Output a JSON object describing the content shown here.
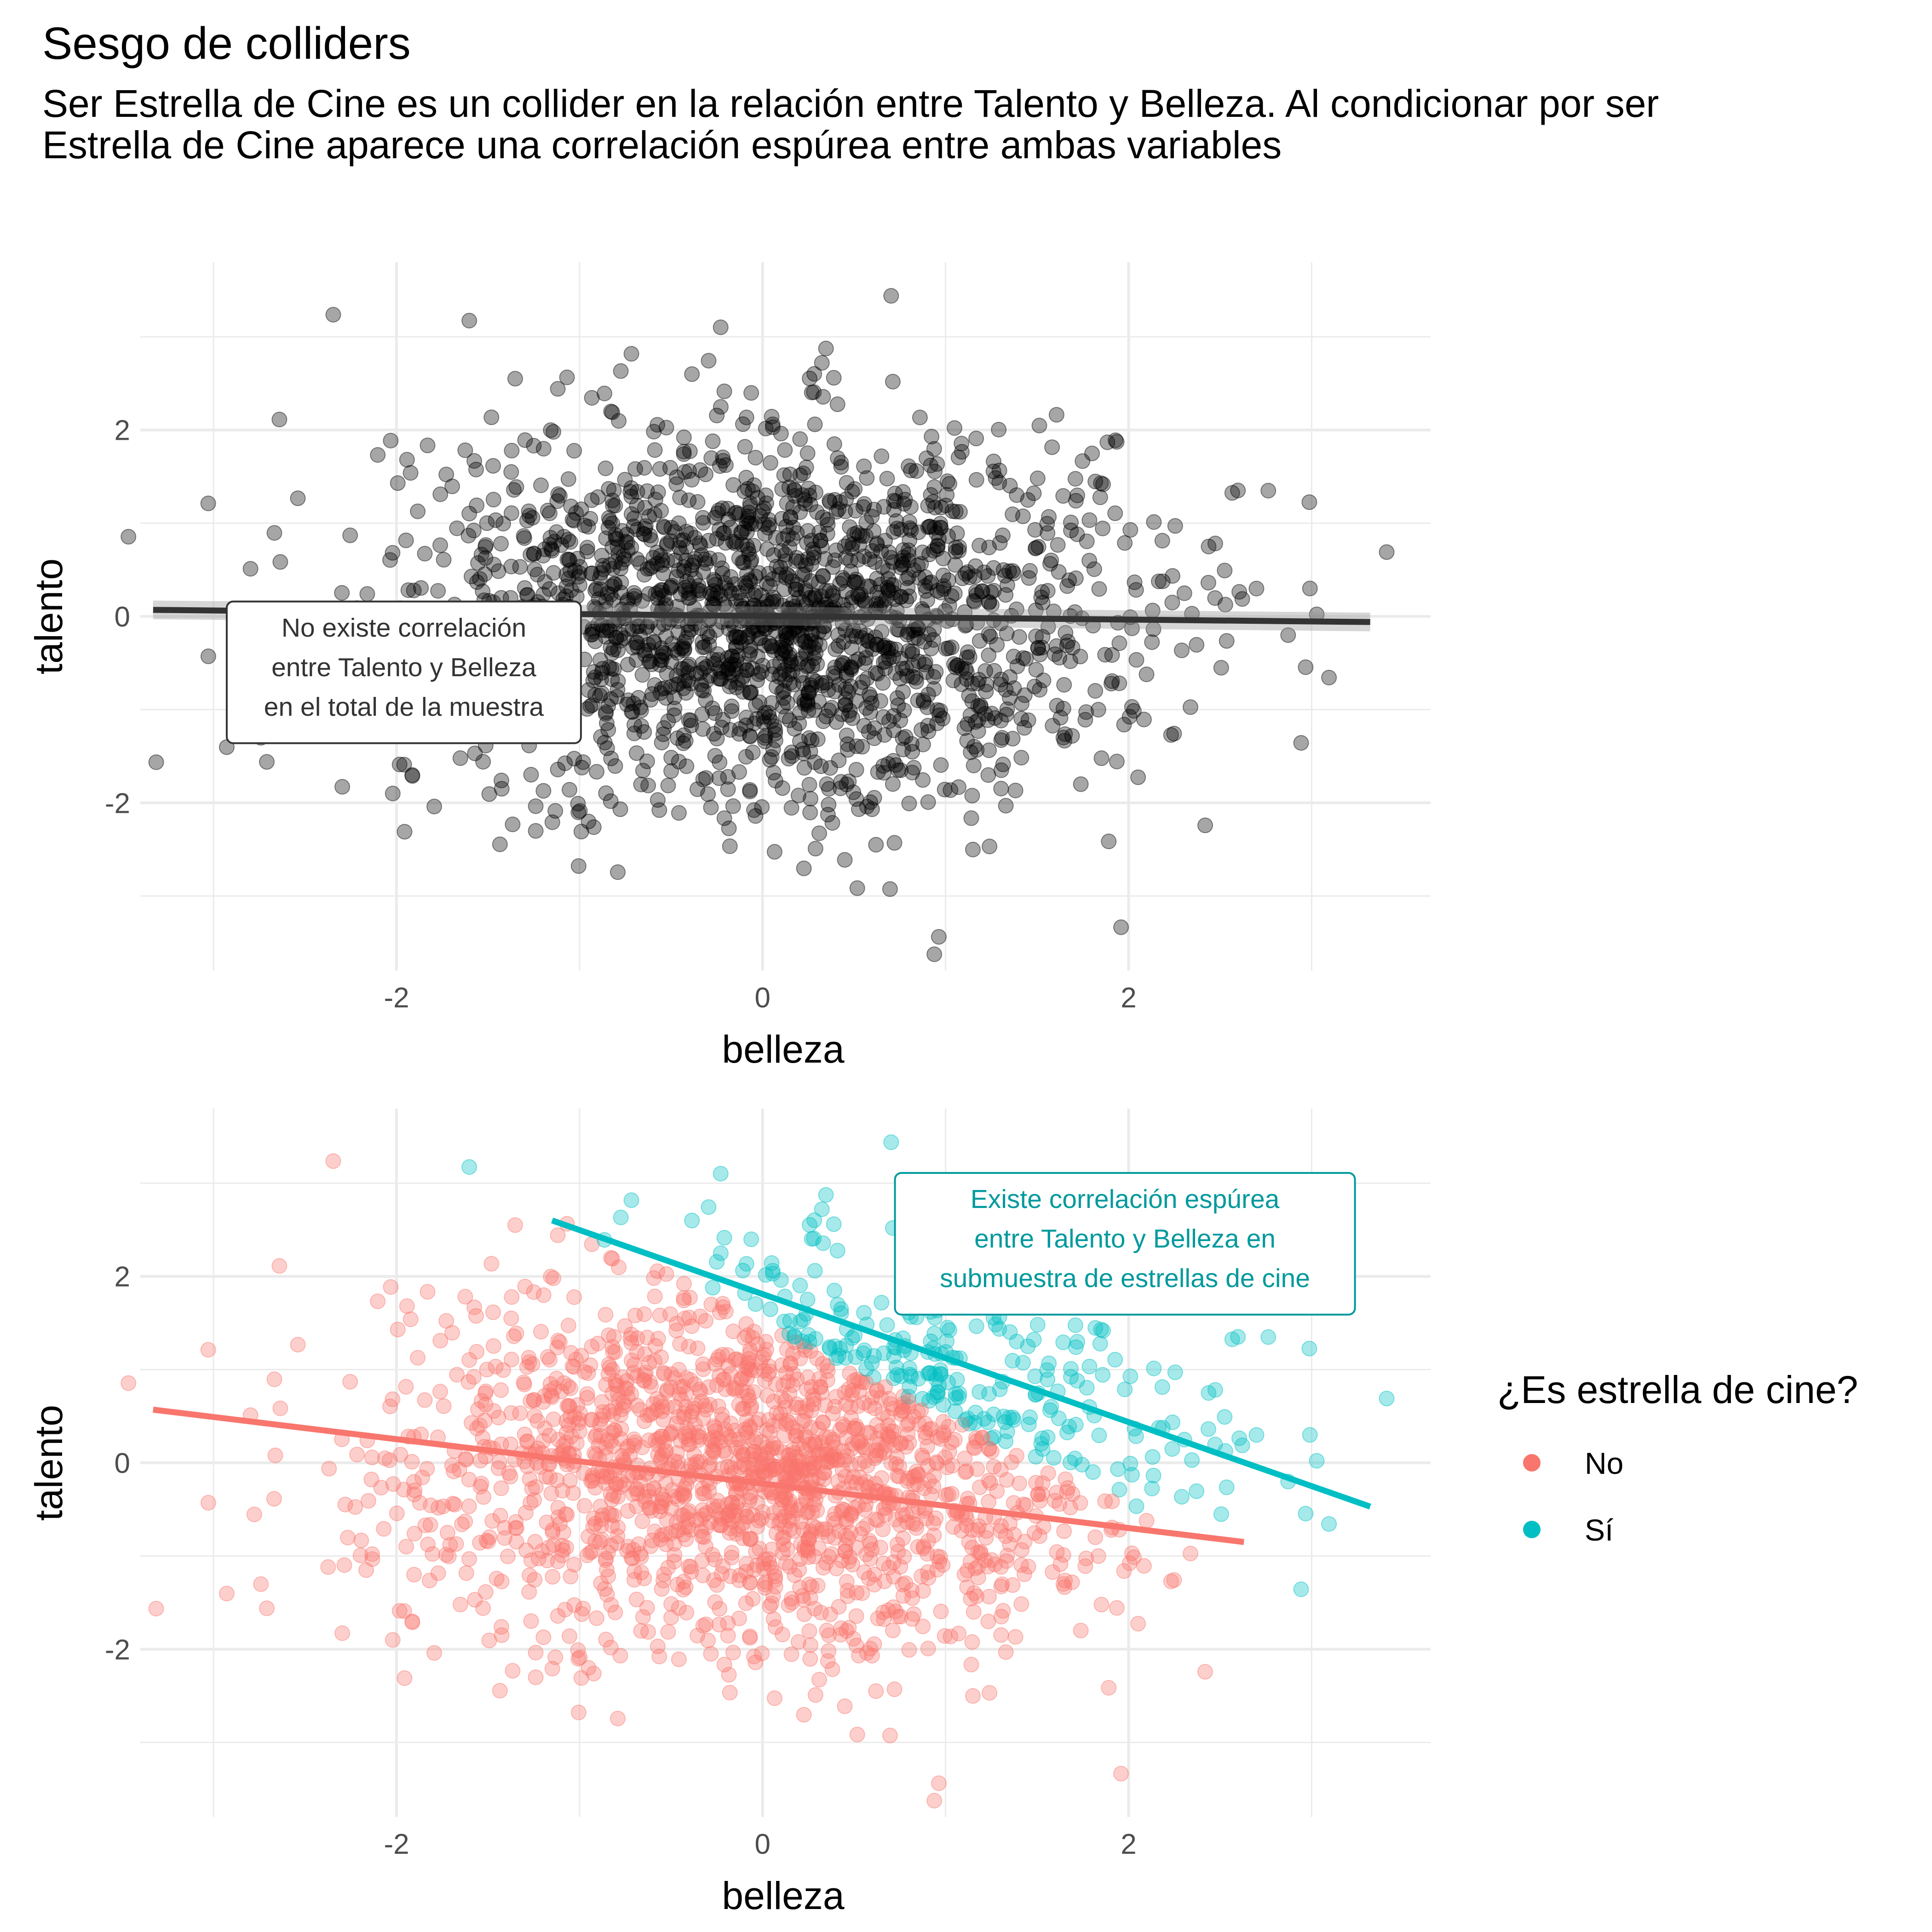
{
  "title": "Sesgo de colliders",
  "subtitle": "Ser Estrella de Cine es un collider en la relación entre Talento y Belleza. Al condicionar por ser Estrella de Cine aparece una correlación espúrea entre ambas variables",
  "chart_data": [
    {
      "type": "scatter",
      "xlabel": "belleza",
      "ylabel": "talento",
      "xlim": [
        -3.4,
        3.65
      ],
      "ylim": [
        -3.8,
        3.8
      ],
      "xticks": [
        -2,
        0,
        2
      ],
      "yticks": [
        -2,
        0,
        2
      ],
      "xtick_labels": [
        "-2",
        "0",
        "2"
      ],
      "ytick_labels": [
        "-2",
        "0",
        "2"
      ],
      "grid": true,
      "point_color": "#000000",
      "point_alpha": 0.35,
      "n_points": 2000,
      "correlation": 0.0,
      "fit_line": {
        "color": "#333333",
        "x": [
          -3.33,
          3.32
        ],
        "y": [
          0.07,
          -0.06
        ],
        "se_band": true
      },
      "annotation": {
        "text": [
          "No existe correlación",
          "entre Talento y Belleza",
          "en el total de la muestra"
        ],
        "x": -1.96,
        "y": -0.6
      }
    },
    {
      "type": "scatter",
      "xlabel": "belleza",
      "ylabel": "talento",
      "xlim": [
        -3.4,
        3.65
      ],
      "ylim": [
        -3.8,
        3.8
      ],
      "xticks": [
        -2,
        0,
        2
      ],
      "yticks": [
        -2,
        0,
        2
      ],
      "xtick_labels": [
        "-2",
        "0",
        "2"
      ],
      "ytick_labels": [
        "-2",
        "0",
        "2"
      ],
      "grid": true,
      "point_alpha": 0.35,
      "group_rule": "belleza + talento > 1.5",
      "series": [
        {
          "name": "No",
          "color": "#F8766D",
          "fit_line": {
            "x": [
              -3.33,
              2.63
            ],
            "y": [
              0.57,
              -0.85
            ]
          }
        },
        {
          "name": "Sí",
          "color": "#00BFC4",
          "fit_line": {
            "x": [
              -1.15,
              3.32
            ],
            "y": [
              2.6,
              -0.47
            ]
          }
        }
      ],
      "annotation": {
        "text": [
          "Existe correlación espúrea",
          "entre Talento y Belleza en",
          "submuestra de estrellas de cine"
        ],
        "x": 1.98,
        "y": 2.35,
        "color": "#00999D"
      },
      "legend": {
        "title": "¿Es estrella de cine?",
        "position": "right"
      }
    }
  ]
}
